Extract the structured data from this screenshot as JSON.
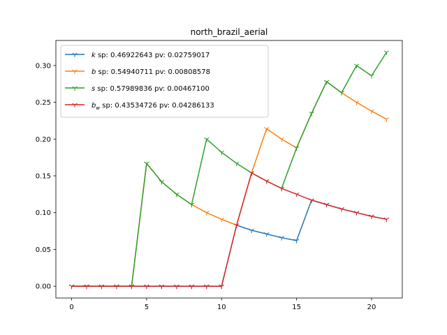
{
  "chart_data": {
    "type": "line",
    "title": "north_brazil_aerial",
    "xlabel": "",
    "ylabel": "",
    "xlim": [
      -1.05,
      22.05
    ],
    "ylim": [
      -0.016,
      0.334
    ],
    "xticks": [
      0,
      5,
      10,
      15,
      20
    ],
    "yticks": [
      0.0,
      0.05,
      0.1,
      0.15,
      0.2,
      0.25,
      0.3
    ],
    "ytick_labels": [
      "0.00",
      "0.05",
      "0.10",
      "0.15",
      "0.20",
      "0.25",
      "0.30"
    ],
    "grid": false,
    "legend_position": "top-left",
    "x": [
      0,
      1,
      2,
      3,
      4,
      5,
      6,
      7,
      8,
      9,
      10,
      11,
      12,
      13,
      14,
      15,
      16,
      17,
      18,
      19,
      20,
      21
    ],
    "series": [
      {
        "name": "k",
        "label_rest": " sp: 0.46922643 pv: 0.02759017",
        "color": "#1f77b4",
        "values": [
          0,
          0,
          0,
          0,
          0,
          0,
          0,
          0,
          0,
          0,
          0,
          0.083,
          0.076,
          0.071,
          0.066,
          0.062,
          0.117,
          0.111,
          0.105,
          0.1,
          0.095,
          0.091
        ]
      },
      {
        "name": "b",
        "label_rest": " sp: 0.54940711 pv: 0.00808578",
        "color": "#ff7f0e",
        "values": [
          0,
          0,
          0,
          0,
          0,
          0.167,
          0.142,
          0.125,
          0.111,
          0.1,
          0.091,
          0.083,
          0.154,
          0.214,
          0.2,
          0.188,
          0.235,
          0.278,
          0.263,
          0.25,
          0.238,
          0.227
        ]
      },
      {
        "name": "s",
        "label_rest": " sp: 0.57989836 pv: 0.00467100",
        "color": "#2ca02c",
        "values": [
          0,
          0,
          0,
          0,
          0,
          0.167,
          0.142,
          0.125,
          0.111,
          0.2,
          0.182,
          0.167,
          0.154,
          0.143,
          0.133,
          0.188,
          0.235,
          0.278,
          0.263,
          0.3,
          0.286,
          0.318
        ]
      },
      {
        "name": "b",
        "name_sub": "w",
        "label_rest": " sp: 0.43534726 pv: 0.04286133",
        "color": "#d62728",
        "values": [
          0,
          0,
          0,
          0,
          0,
          0,
          0,
          0,
          0,
          0,
          0,
          0.083,
          0.154,
          0.143,
          0.133,
          0.125,
          0.117,
          0.111,
          0.105,
          0.1,
          0.095,
          0.091
        ]
      }
    ]
  }
}
